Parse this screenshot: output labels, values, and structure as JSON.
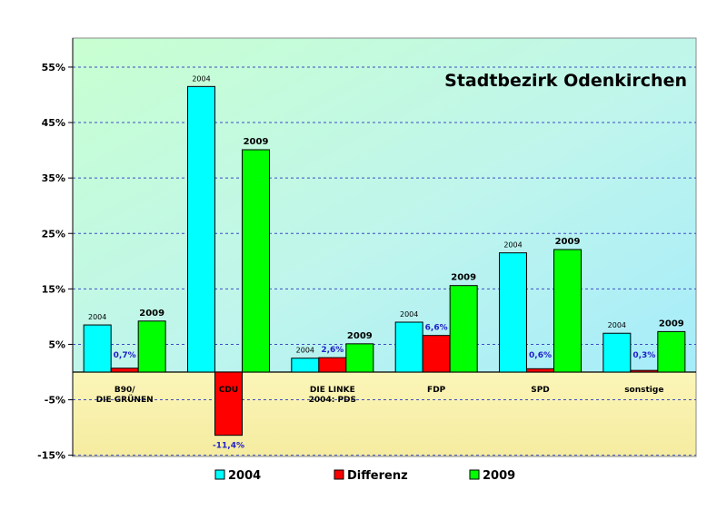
{
  "chart_data": {
    "type": "bar",
    "title": "Stadtbezirk Odenkirchen",
    "categories": [
      {
        "lines": [
          "B90/",
          "DIE GRÜNEN"
        ]
      },
      {
        "lines": [
          "CDU"
        ]
      },
      {
        "lines": [
          "DIE LINKE",
          "2004: PDS"
        ]
      },
      {
        "lines": [
          "FDP"
        ]
      },
      {
        "lines": [
          "SPD"
        ]
      },
      {
        "lines": [
          "sonstige"
        ]
      }
    ],
    "series": [
      {
        "name": "2004",
        "color": "#00ffff",
        "values": [
          8.5,
          51.5,
          2.5,
          9.0,
          21.5,
          7.0
        ],
        "bar_label": "2004"
      },
      {
        "name": "Differenz",
        "color": "#ff0000",
        "values": [
          0.7,
          -11.4,
          2.6,
          6.6,
          0.6,
          0.3
        ],
        "value_labels": [
          "0,7%",
          "-11,4%",
          "2,6%",
          "6,6%",
          "0,6%",
          "0,3%"
        ]
      },
      {
        "name": "2009",
        "color": "#00ff00",
        "values": [
          9.2,
          40.1,
          5.1,
          15.6,
          22.1,
          7.3
        ],
        "bar_label": "2009"
      }
    ],
    "yaxis": {
      "ticks": [
        55,
        45,
        35,
        25,
        15,
        5,
        -5,
        -15
      ],
      "tick_labels": [
        "55%",
        "45%",
        "35%",
        "25%",
        "15%",
        "5%",
        "-5%",
        "-15%"
      ],
      "ylim": [
        -15,
        55
      ]
    },
    "legend": {
      "placement": "bottom"
    },
    "grid": true
  }
}
